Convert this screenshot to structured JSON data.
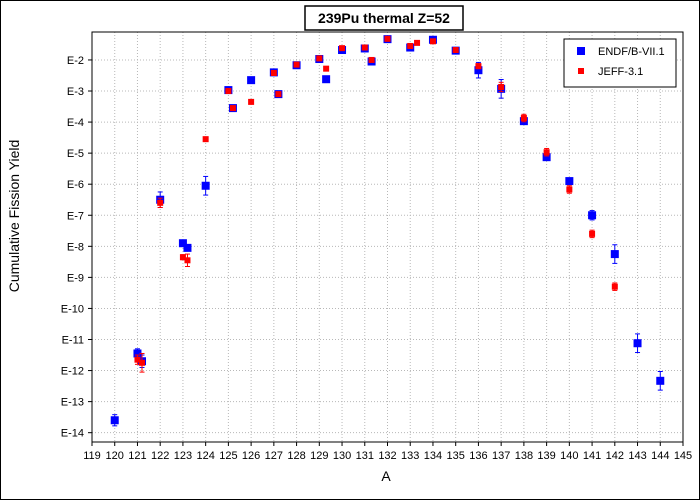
{
  "chart_data": {
    "type": "scatter",
    "title": "239Pu thermal Z=52",
    "xlabel": "A",
    "ylabel": "Cumulative Fission Yield",
    "xlim": [
      119,
      145
    ],
    "ylim": [
      -14.3,
      -1.1
    ],
    "y_scale": "log10",
    "x_ticks": [
      119,
      120,
      121,
      122,
      123,
      124,
      125,
      126,
      127,
      128,
      129,
      130,
      131,
      132,
      133,
      134,
      135,
      136,
      137,
      138,
      139,
      140,
      141,
      142,
      143,
      144,
      145
    ],
    "y_ticks": [
      {
        "value": -2,
        "label": "E-2"
      },
      {
        "value": -3,
        "label": "E-3"
      },
      {
        "value": -4,
        "label": "E-4"
      },
      {
        "value": -5,
        "label": "E-5"
      },
      {
        "value": -6,
        "label": "E-6"
      },
      {
        "value": -7,
        "label": "E-7"
      },
      {
        "value": -8,
        "label": "E-8"
      },
      {
        "value": -9,
        "label": "E-9"
      },
      {
        "value": -10,
        "label": "E-10"
      },
      {
        "value": -11,
        "label": "E-11"
      },
      {
        "value": -12,
        "label": "E-12"
      },
      {
        "value": -13,
        "label": "E-13"
      },
      {
        "value": -14,
        "label": "E-14"
      }
    ],
    "grid": true,
    "legend_position": "top-right",
    "series": [
      {
        "name": "ENDF/B-VII.1",
        "color": "#0000ff",
        "marker": "square",
        "points": [
          {
            "x": 120,
            "y": -13.6,
            "err": 0.18
          },
          {
            "x": 121,
            "y": -11.45,
            "err": 0.15
          },
          {
            "x": 121.2,
            "y": -11.7,
            "err": 0.2
          },
          {
            "x": 122,
            "y": -6.5,
            "err": 0.25
          },
          {
            "x": 123,
            "y": -7.9,
            "err": 0.1
          },
          {
            "x": 123.2,
            "y": -8.05,
            "err": 0.1
          },
          {
            "x": 124,
            "y": -6.05,
            "err": 0.3
          },
          {
            "x": 125,
            "y": -2.97,
            "err": 0.05
          },
          {
            "x": 125.2,
            "y": -3.55,
            "err": 0.05
          },
          {
            "x": 126,
            "y": -2.65,
            "err": 0.05
          },
          {
            "x": 127,
            "y": -2.4,
            "err": 0.05
          },
          {
            "x": 127.2,
            "y": -3.1,
            "err": 0.05
          },
          {
            "x": 128,
            "y": -2.17,
            "err": 0.05
          },
          {
            "x": 129,
            "y": -1.97,
            "err": 0.05
          },
          {
            "x": 129.3,
            "y": -2.62,
            "err": 0.05
          },
          {
            "x": 130,
            "y": -1.68,
            "err": 0.05
          },
          {
            "x": 131,
            "y": -1.63,
            "err": 0.05
          },
          {
            "x": 131.3,
            "y": -2.05,
            "err": 0.05
          },
          {
            "x": 132,
            "y": -1.33,
            "err": 0.05
          },
          {
            "x": 133,
            "y": -1.6,
            "err": 0.05
          },
          {
            "x": 134,
            "y": -1.35,
            "err": 0.05
          },
          {
            "x": 135,
            "y": -1.7,
            "err": 0.05
          },
          {
            "x": 136,
            "y": -2.33,
            "err": 0.25
          },
          {
            "x": 137,
            "y": -2.93,
            "err": 0.3
          },
          {
            "x": 138,
            "y": -3.97,
            "err": 0.08
          },
          {
            "x": 139,
            "y": -5.13,
            "err": 0.08
          },
          {
            "x": 140,
            "y": -5.9,
            "err": 0.1
          },
          {
            "x": 141,
            "y": -7.0,
            "err": 0.15
          },
          {
            "x": 142,
            "y": -8.25,
            "err": 0.3
          },
          {
            "x": 143,
            "y": -11.12,
            "err": 0.3
          },
          {
            "x": 144,
            "y": -12.33,
            "err": 0.3
          }
        ]
      },
      {
        "name": "JEFF-3.1",
        "color": "#ff0000",
        "marker": "square",
        "points": [
          {
            "x": 121,
            "y": -11.65,
            "err": 0.15
          },
          {
            "x": 121.2,
            "y": -11.75,
            "err": 0.3
          },
          {
            "x": 122,
            "y": -6.6,
            "err": 0.15
          },
          {
            "x": 123,
            "y": -8.35,
            "err": 0.08
          },
          {
            "x": 123.2,
            "y": -8.45,
            "err": 0.2
          },
          {
            "x": 124,
            "y": -4.55,
            "err": 0
          },
          {
            "x": 125,
            "y": -3.0,
            "err": 0.05
          },
          {
            "x": 125.2,
            "y": -3.55,
            "err": 0.05
          },
          {
            "x": 126,
            "y": -3.35,
            "err": 0.05
          },
          {
            "x": 127,
            "y": -2.42,
            "err": 0.05
          },
          {
            "x": 127.2,
            "y": -3.1,
            "err": 0.05
          },
          {
            "x": 128,
            "y": -2.15,
            "err": 0.05
          },
          {
            "x": 129,
            "y": -1.95,
            "err": 0.05
          },
          {
            "x": 129.3,
            "y": -2.28,
            "err": 0.05
          },
          {
            "x": 130,
            "y": -1.62,
            "err": 0.05
          },
          {
            "x": 131,
            "y": -1.6,
            "err": 0.05
          },
          {
            "x": 131.3,
            "y": -2.0,
            "err": 0.05
          },
          {
            "x": 132,
            "y": -1.32,
            "err": 0.05
          },
          {
            "x": 133,
            "y": -1.55,
            "err": 0.05
          },
          {
            "x": 133.3,
            "y": -1.45,
            "err": 0.05
          },
          {
            "x": 134,
            "y": -1.4,
            "err": 0.05
          },
          {
            "x": 135,
            "y": -1.68,
            "err": 0.05
          },
          {
            "x": 136,
            "y": -2.2,
            "err": 0.08
          },
          {
            "x": 137,
            "y": -2.87,
            "err": 0.15
          },
          {
            "x": 138,
            "y": -3.87,
            "err": 0.12
          },
          {
            "x": 139,
            "y": -4.97,
            "err": 0.12
          },
          {
            "x": 140,
            "y": -6.17,
            "err": 0.12
          },
          {
            "x": 141,
            "y": -7.6,
            "err": 0.12
          },
          {
            "x": 142,
            "y": -9.3,
            "err": 0.12
          }
        ]
      }
    ]
  }
}
